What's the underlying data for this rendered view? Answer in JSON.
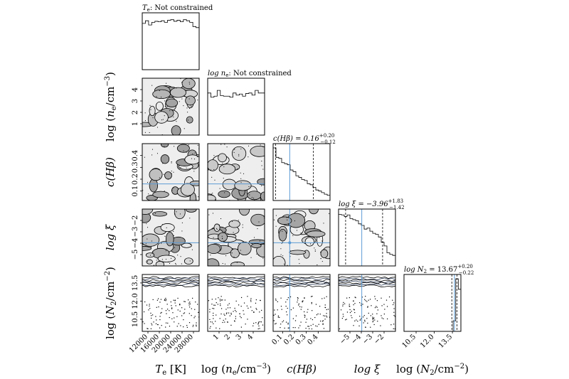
{
  "chart_data": {
    "type": "corner",
    "parameters": [
      {
        "key": "Te",
        "label": "T_e [K]",
        "label_main": "T",
        "label_sub": "e",
        "label_tail": " [K]",
        "axis_style": "upright-sub",
        "ticks": [
          12000,
          16000,
          20000,
          24000,
          28000
        ],
        "tick_labels": [
          "12000",
          "16000",
          "20000",
          "24000",
          "28000"
        ],
        "range": [
          10000,
          30000
        ]
      },
      {
        "key": "log_ne",
        "label": "log (n_e/cm^-3)",
        "label_prefix": "log (",
        "label_main": "n",
        "label_sub": "e",
        "label_tail": "/cm",
        "label_sup": "−3",
        "label_end": ")",
        "ticks": [
          1,
          2,
          3,
          4
        ],
        "tick_labels": [
          "1",
          "2",
          "3",
          "4"
        ],
        "range": [
          0,
          5
        ]
      },
      {
        "key": "cHb",
        "label": "c(Hβ)",
        "ticks": [
          0.1,
          0.2,
          0.3,
          0.4
        ],
        "tick_labels": [
          "0.1",
          "0.2",
          "0.3",
          "0.4"
        ],
        "range": [
          0.02,
          0.5
        ]
      },
      {
        "key": "log_xi",
        "label": "log ξ",
        "ticks": [
          -5,
          -4,
          -3,
          -2
        ],
        "tick_labels": [
          "−5",
          "−4",
          "−3",
          "−2"
        ],
        "range": [
          -6,
          -1
        ]
      },
      {
        "key": "log_N2",
        "label": "log (N_2/cm^-2)",
        "label_prefix": "log (",
        "label_main": "N",
        "label_sub": "2",
        "label_tail": "/cm",
        "label_sup": "−2",
        "label_end": ")",
        "ticks": [
          10.5,
          12.0,
          13.5
        ],
        "tick_labels": [
          "10.5",
          "12.0",
          "13.5"
        ],
        "range": [
          9.5,
          14.2
        ]
      }
    ],
    "titles": [
      {
        "text_main": "T",
        "text_sub": "e",
        "text_tail": ": Not constrained"
      },
      {
        "text_main": "log n",
        "text_sub": "e",
        "text_tail": ": Not constrained"
      },
      {
        "text_main": "c(Hβ) = 0.16",
        "plus": "+0.20",
        "minus": "−0.12"
      },
      {
        "text_main": "log ξ = −3.96",
        "plus": "+1.83",
        "minus": "−1.42"
      },
      {
        "text_main": "log N",
        "text_sub": "2",
        "text_tail": " = 13.67",
        "plus": "+0.20",
        "minus": "−0.22"
      }
    ],
    "marginals": [
      {
        "key": "Te",
        "hist": [
          0.88,
          0.93,
          0.85,
          0.9,
          0.92,
          0.91,
          0.93,
          0.9,
          0.94,
          0.95,
          0.92,
          0.94,
          0.91,
          0.95,
          0.93,
          0.9,
          0.82,
          0.8
        ],
        "quantile_lines": []
      },
      {
        "key": "log_ne",
        "hist": [
          0.8,
          0.72,
          0.74,
          0.85,
          0.75,
          0.74,
          0.74,
          0.72,
          0.8,
          0.76,
          0.78,
          0.74,
          0.79,
          0.8,
          0.76,
          0.85,
          0.8,
          0.8
        ],
        "quantile_lines": []
      },
      {
        "key": "cHb",
        "hist": [
          1.0,
          0.82,
          0.8,
          0.72,
          0.7,
          0.68,
          0.58,
          0.55,
          0.47,
          0.44,
          0.4,
          0.38,
          0.32,
          0.3,
          0.25,
          0.2,
          0.18,
          0.15,
          0.12,
          0.1
        ],
        "median": 0.16,
        "quantile_lines": [
          0.04,
          0.36
        ]
      },
      {
        "key": "log_xi",
        "hist": [
          0.98,
          0.97,
          0.94,
          0.97,
          0.9,
          0.88,
          0.86,
          0.8,
          0.77,
          0.7,
          0.72,
          0.66,
          0.62,
          0.6,
          0.55,
          0.45,
          0.38,
          0.25,
          0.22,
          0.2
        ],
        "median": -3.96,
        "quantile_lines": [
          -5.38,
          -2.13
        ]
      },
      {
        "key": "log_N2",
        "hist": [
          0.0,
          0.0,
          0.0,
          0.0,
          0.0,
          0.0,
          0.0,
          0.0,
          0.0,
          0.0,
          0.0,
          0.0,
          0.0,
          0.0,
          0.0,
          0.0,
          0.0,
          0.0,
          0.0,
          0.2,
          1.0,
          0.8
        ],
        "median": 13.67,
        "quantile_lines": [
          13.45,
          13.87
        ]
      }
    ],
    "best_fit": {
      "cHb": 0.16,
      "log_xi": -3.96,
      "log_N2": 13.67
    },
    "colors": {
      "contour": "#000000",
      "truth": "#5b9bd5",
      "background": "#ffffff"
    }
  }
}
